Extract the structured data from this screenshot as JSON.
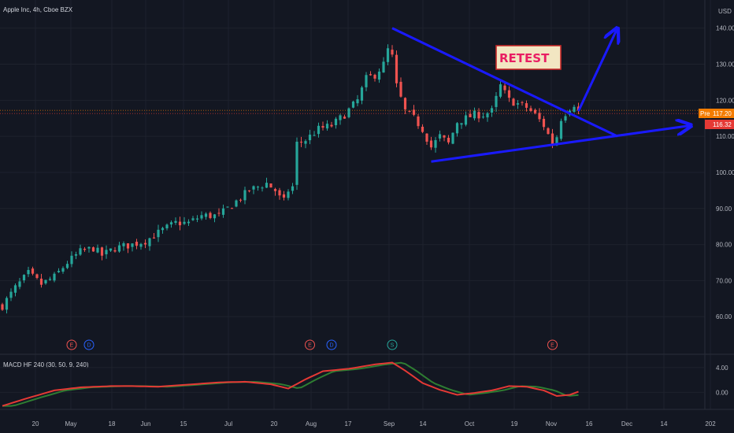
{
  "chart_title": "Apple Inc, 4h, Cboe BZX",
  "currency": "USD",
  "colors": {
    "background": "#131722",
    "grid": "#1e222d",
    "up": "#26a69a",
    "down": "#ef5350",
    "trendline": "#1a1aff",
    "macd": "#e53935",
    "signal": "#2e7d32",
    "pre_badge": "#f57c00",
    "last_badge": "#e53935",
    "retest_text": "#e91e63",
    "retest_fill": "#f2e6c2",
    "retest_border": "#c62828"
  },
  "price_badges": {
    "pre_label": "Pre",
    "pre_value": "117.20",
    "last_value": "116.32"
  },
  "annotation": {
    "text": "RETEST"
  },
  "chart_data": {
    "type": "candlestick",
    "title": "Apple Inc, 4h, Cboe BZX",
    "ylim": [
      50,
      143
    ],
    "y_ticks": [
      "60.00",
      "70.00",
      "80.00",
      "90.00",
      "100.00",
      "110.00",
      "120.00",
      "130.00",
      "140.00"
    ],
    "x_ticks": [
      "20",
      "May",
      "18",
      "Jun",
      "15",
      "Jul",
      "20",
      "Aug",
      "17",
      "Sep",
      "14",
      "Oct",
      "19",
      "Nov",
      "16",
      "Dec",
      "14",
      "202"
    ],
    "close_anchors": [
      [
        0,
        63
      ],
      [
        3,
        68
      ],
      [
        6,
        72
      ],
      [
        9,
        69
      ],
      [
        12,
        71
      ],
      [
        15,
        75
      ],
      [
        18,
        78
      ],
      [
        21,
        79
      ],
      [
        23,
        77
      ],
      [
        26,
        79
      ],
      [
        30,
        80
      ],
      [
        33,
        81
      ],
      [
        37,
        84
      ],
      [
        40,
        86
      ],
      [
        43,
        86
      ],
      [
        46,
        88
      ],
      [
        50,
        88
      ],
      [
        54,
        92
      ],
      [
        57,
        95
      ],
      [
        59,
        96
      ],
      [
        61,
        97
      ],
      [
        63,
        95
      ],
      [
        64,
        93
      ],
      [
        65,
        92
      ],
      [
        66,
        95
      ],
      [
        67,
        96
      ],
      [
        68,
        108
      ],
      [
        70,
        109
      ],
      [
        73,
        112
      ],
      [
        76,
        113
      ],
      [
        79,
        116
      ],
      [
        82,
        120
      ],
      [
        84,
        126
      ],
      [
        86,
        127
      ],
      [
        88,
        130
      ],
      [
        89,
        134
      ],
      [
        90,
        132
      ],
      [
        91,
        124
      ],
      [
        93,
        117
      ],
      [
        95,
        115
      ],
      [
        97,
        112
      ],
      [
        99,
        107
      ],
      [
        101,
        110
      ],
      [
        103,
        108
      ],
      [
        105,
        114
      ],
      [
        107,
        115
      ],
      [
        109,
        116
      ],
      [
        111,
        116
      ],
      [
        113,
        117
      ],
      [
        115,
        124
      ],
      [
        117,
        120
      ],
      [
        119,
        119
      ],
      [
        121,
        118
      ],
      [
        123,
        116
      ],
      [
        125,
        113
      ],
      [
        127,
        108
      ],
      [
        128,
        110
      ],
      [
        129,
        115
      ],
      [
        131,
        118
      ],
      [
        132,
        119
      ],
      [
        133,
        117
      ]
    ],
    "events": [
      {
        "label": "E",
        "bar": 16
      },
      {
        "label": "D",
        "bar": 20
      },
      {
        "label": "E",
        "bar": 71
      },
      {
        "label": "D",
        "bar": 76
      },
      {
        "label": "S",
        "bar": 90
      },
      {
        "label": "E",
        "bar": 127
      }
    ],
    "trendlines": [
      {
        "from": [
          90,
          140
        ],
        "to": [
          142,
          110
        ]
      },
      {
        "from": [
          99,
          103
        ],
        "to": [
          159,
          113
        ]
      },
      {
        "from": [
          133,
          117
        ],
        "to": [
          142,
          140
        ]
      }
    ],
    "indicator": {
      "name": "MACD HF 240 (30, 50, 9, 240)",
      "y_ticks": [
        "4.00",
        "0.00"
      ],
      "ylim": [
        -2.5,
        5.5
      ],
      "macd_anchors": [
        [
          0,
          -2.2
        ],
        [
          6,
          -0.9
        ],
        [
          12,
          0.3
        ],
        [
          18,
          0.8
        ],
        [
          25,
          1.0
        ],
        [
          30,
          1.0
        ],
        [
          36,
          0.9
        ],
        [
          42,
          1.2
        ],
        [
          50,
          1.6
        ],
        [
          56,
          1.7
        ],
        [
          62,
          1.3
        ],
        [
          66,
          0.6
        ],
        [
          70,
          2.1
        ],
        [
          74,
          3.4
        ],
        [
          80,
          3.8
        ],
        [
          86,
          4.5
        ],
        [
          90,
          4.8
        ],
        [
          93,
          3.5
        ],
        [
          97,
          1.5
        ],
        [
          101,
          0.4
        ],
        [
          105,
          -0.4
        ],
        [
          109,
          -0.1
        ],
        [
          113,
          0.3
        ],
        [
          117,
          1.0
        ],
        [
          121,
          0.9
        ],
        [
          125,
          0.3
        ],
        [
          128,
          -0.6
        ],
        [
          131,
          -0.4
        ],
        [
          133,
          0.1
        ]
      ]
    }
  }
}
